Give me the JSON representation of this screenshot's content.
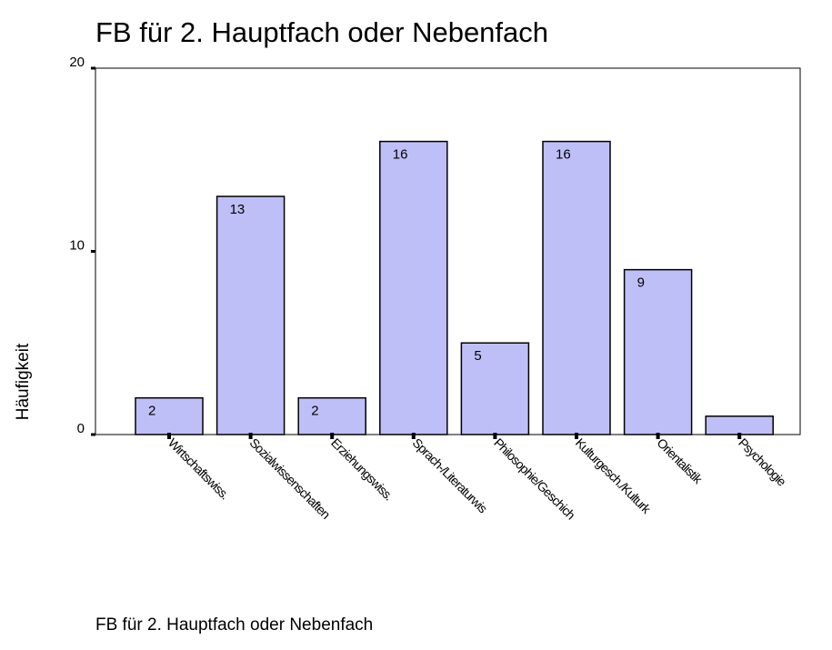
{
  "chart_data": {
    "type": "bar",
    "title": "FB für 2. Hauptfach oder Nebenfach",
    "x_label": "FB für 2. Hauptfach oder Nebenfach",
    "y_label": "Häufigkeit",
    "categories": [
      "Wirtschaftswiss.",
      "Sozialwissenschaften",
      "Erziehungswiss.",
      "Sprach-/Literaturwis",
      "Philosophie/Geschich",
      "Kulturgesch./Kulturk",
      "Orientalistik",
      "Psychologie"
    ],
    "values": [
      2,
      13,
      2,
      16,
      5,
      16,
      9,
      1
    ],
    "value_labels": [
      "2",
      "13",
      "2",
      "16",
      "5",
      "16",
      "9",
      null
    ],
    "color": "#bfbff8",
    "ylim": [
      0,
      20
    ],
    "yticks": [
      0,
      10,
      20
    ],
    "grid": false
  }
}
